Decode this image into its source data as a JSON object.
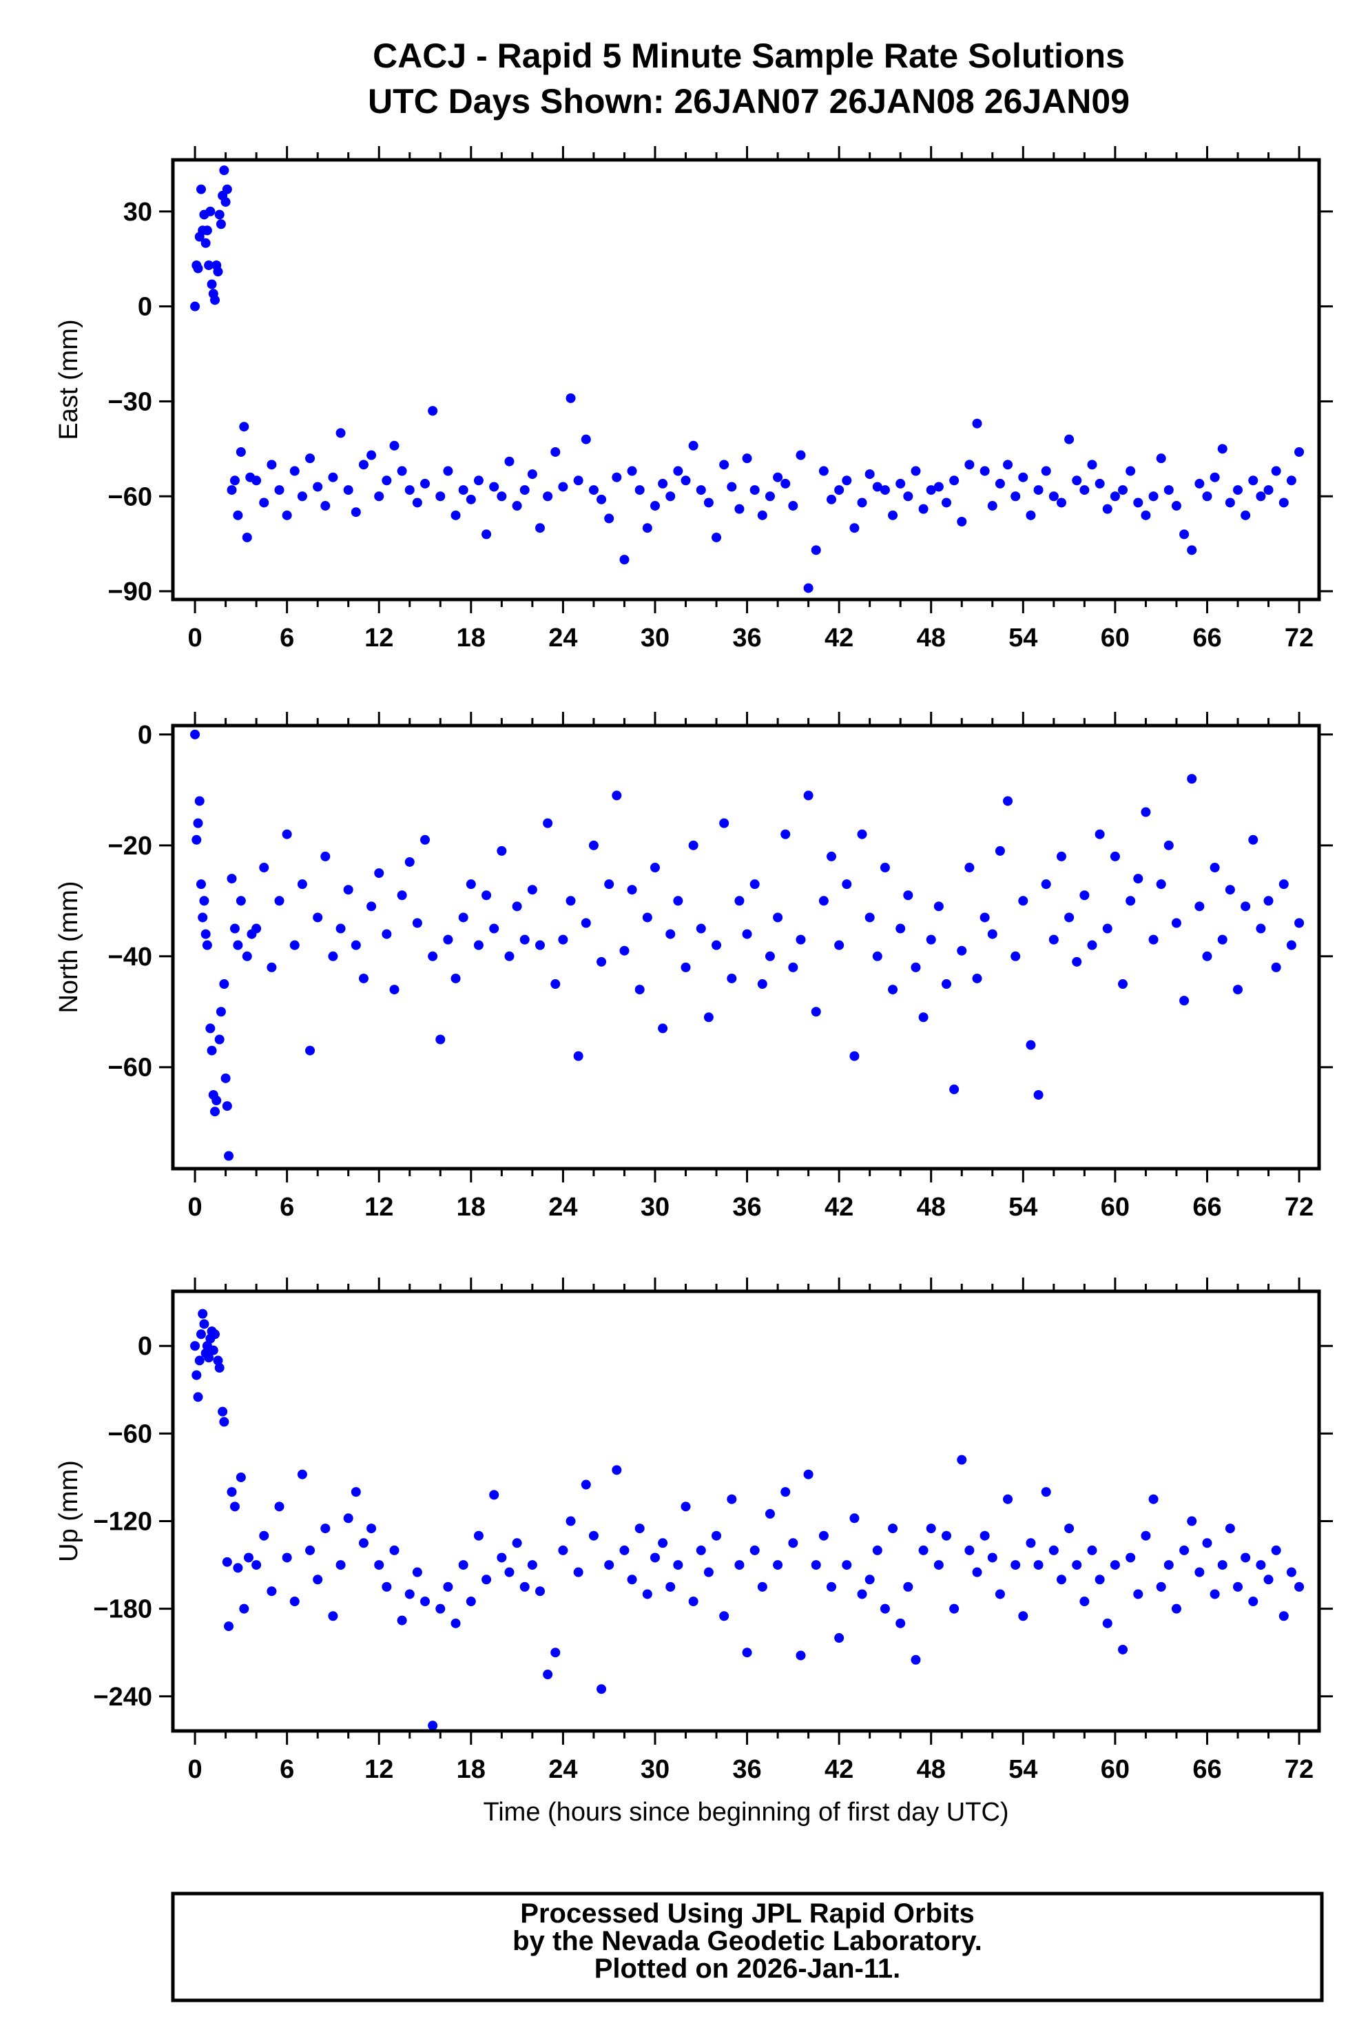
{
  "title": {
    "line1": "CACJ - Rapid 5 Minute Sample Rate Solutions",
    "line2": "UTC Days Shown:  26JAN07 26JAN08 26JAN09"
  },
  "footer": {
    "line1": "Processed Using JPL Rapid Orbits",
    "line2": "by the Nevada Geodetic Laboratory.",
    "line3": "Plotted on 2026-Jan-11."
  },
  "colors": {
    "points": "#0000ff",
    "frame": "#000000"
  },
  "chart_data": [
    {
      "type": "scatter",
      "name": "east",
      "ylabel": "East (mm)",
      "xlabel": "",
      "xlim": [
        -1.44,
        73.3
      ],
      "ylim": [
        -92.6,
        46.3
      ],
      "xticks": [
        0,
        6,
        12,
        18,
        24,
        30,
        36,
        42,
        48,
        54,
        60,
        66,
        72
      ],
      "yticks": [
        30,
        0,
        -30,
        -60,
        -90
      ],
      "early_points": [
        [
          0,
          0
        ],
        [
          0.1,
          13
        ],
        [
          0.2,
          12
        ],
        [
          0.3,
          22
        ],
        [
          0.4,
          37
        ],
        [
          0.5,
          24
        ],
        [
          0.6,
          29
        ],
        [
          0.7,
          20
        ],
        [
          0.8,
          24
        ],
        [
          0.9,
          13
        ],
        [
          1.0,
          30
        ],
        [
          1.1,
          7
        ],
        [
          1.2,
          4
        ],
        [
          1.3,
          2
        ],
        [
          1.4,
          13
        ],
        [
          1.5,
          11
        ],
        [
          1.6,
          29
        ],
        [
          1.7,
          26
        ],
        [
          1.8,
          35
        ],
        [
          1.9,
          43
        ],
        [
          2.0,
          33
        ],
        [
          2.1,
          37
        ],
        [
          2.4,
          -58
        ],
        [
          2.6,
          -55
        ],
        [
          2.8,
          -66
        ],
        [
          3.0,
          -46
        ],
        [
          3.2,
          -38
        ],
        [
          3.4,
          -73
        ],
        [
          3.6,
          -54
        ]
      ],
      "x_range": [
        4,
        72
      ],
      "values": [
        -55,
        -62,
        -50,
        -58,
        -66,
        -52,
        -60,
        -48,
        -57,
        -63,
        -54,
        -40,
        -58,
        -65,
        -50,
        -47,
        -60,
        -55,
        -44,
        -52,
        -58,
        -62,
        -56,
        -33,
        -60,
        -52,
        -66,
        -58,
        -61,
        -55,
        -72,
        -57,
        -60,
        -49,
        -63,
        -58,
        -53,
        -70,
        -60,
        -46,
        -57,
        -29,
        -55,
        -42,
        -58,
        -61,
        -67,
        -54,
        -80,
        -52,
        -58,
        -70,
        -63,
        -56,
        -60,
        -52,
        -55,
        -44,
        -58,
        -62,
        -73,
        -50,
        -57,
        -64,
        -48,
        -58,
        -66,
        -60,
        -54,
        -56,
        -63,
        -47,
        -89,
        -77,
        -52,
        -61,
        -58,
        -55,
        -70,
        -62,
        -53,
        -57,
        -58,
        -66,
        -56,
        -60,
        -52,
        -64,
        -58,
        -57,
        -62,
        -55,
        -68,
        -50,
        -37,
        -52,
        -63,
        -56,
        -50,
        -60,
        -54,
        -66,
        -58,
        -52,
        -60,
        -62,
        -42,
        -55,
        -58,
        -50,
        -56,
        -64,
        -60,
        -58,
        -52,
        -62,
        -66,
        -60,
        -48,
        -58,
        -63,
        -72,
        -77,
        -56,
        -60,
        -54,
        -45,
        -62,
        -58,
        -66,
        -55,
        -60,
        -58,
        -52,
        -62,
        -55,
        -46
      ]
    },
    {
      "type": "scatter",
      "name": "north",
      "ylabel": "North (mm)",
      "xlabel": "",
      "xlim": [
        -1.44,
        73.3
      ],
      "ylim": [
        -78.3,
        1.6
      ],
      "xticks": [
        0,
        6,
        12,
        18,
        24,
        30,
        36,
        42,
        48,
        54,
        60,
        66,
        72
      ],
      "yticks": [
        0,
        -20,
        -40,
        -60
      ],
      "early_points": [
        [
          0,
          0
        ],
        [
          0.1,
          -19
        ],
        [
          0.2,
          -16
        ],
        [
          0.3,
          -12
        ],
        [
          0.4,
          -27
        ],
        [
          0.5,
          -33
        ],
        [
          0.6,
          -30
        ],
        [
          0.7,
          -36
        ],
        [
          0.8,
          -38
        ],
        [
          1.0,
          -53
        ],
        [
          1.1,
          -57
        ],
        [
          1.2,
          -65
        ],
        [
          1.3,
          -68
        ],
        [
          1.4,
          -66
        ],
        [
          1.6,
          -55
        ],
        [
          1.7,
          -50
        ],
        [
          1.9,
          -45
        ],
        [
          2.0,
          -62
        ],
        [
          2.1,
          -67
        ],
        [
          2.2,
          -76
        ],
        [
          2.4,
          -26
        ],
        [
          2.6,
          -35
        ],
        [
          2.8,
          -38
        ],
        [
          3.0,
          -30
        ],
        [
          3.4,
          -40
        ],
        [
          3.7,
          -36
        ]
      ],
      "x_range": [
        4,
        72
      ],
      "values": [
        -35,
        -24,
        -42,
        -30,
        -18,
        -38,
        -27,
        -57,
        -33,
        -22,
        -40,
        -35,
        -28,
        -38,
        -44,
        -31,
        -25,
        -36,
        -46,
        -29,
        -23,
        -34,
        -19,
        -40,
        -55,
        -37,
        -44,
        -33,
        -27,
        -38,
        -29,
        -35,
        -21,
        -40,
        -31,
        -37,
        -28,
        -38,
        -16,
        -45,
        -37,
        -30,
        -58,
        -34,
        -20,
        -41,
        -27,
        -11,
        -39,
        -28,
        -46,
        -33,
        -24,
        -53,
        -36,
        -30,
        -42,
        -20,
        -35,
        -51,
        -38,
        -16,
        -44,
        -30,
        -36,
        -27,
        -45,
        -40,
        -33,
        -18,
        -42,
        -37,
        -11,
        -50,
        -30,
        -22,
        -38,
        -27,
        -58,
        -18,
        -33,
        -40,
        -24,
        -46,
        -35,
        -29,
        -42,
        -51,
        -37,
        -31,
        -45,
        -64,
        -39,
        -24,
        -44,
        -33,
        -36,
        -21,
        -12,
        -40,
        -30,
        -56,
        -65,
        -27,
        -37,
        -22,
        -33,
        -41,
        -29,
        -38,
        -18,
        -35,
        -22,
        -45,
        -30,
        -26,
        -14,
        -37,
        -27,
        -20,
        -34,
        -48,
        -8,
        -31,
        -40,
        -24,
        -37,
        -28,
        -46,
        -31,
        -19,
        -35,
        -30,
        -42,
        -27,
        -38,
        -34
      ]
    },
    {
      "type": "scatter",
      "name": "up",
      "ylabel": "Up (mm)",
      "xlabel": "Time (hours since beginning of first day UTC)",
      "xlim": [
        -1.44,
        73.3
      ],
      "ylim": [
        -263.7,
        37.4
      ],
      "xticks": [
        0,
        6,
        12,
        18,
        24,
        30,
        36,
        42,
        48,
        54,
        60,
        66,
        72
      ],
      "yticks": [
        0,
        -60,
        -120,
        -180,
        -240
      ],
      "early_points": [
        [
          0,
          0
        ],
        [
          0.1,
          -20
        ],
        [
          0.2,
          -35
        ],
        [
          0.3,
          -10
        ],
        [
          0.4,
          8
        ],
        [
          0.5,
          22
        ],
        [
          0.6,
          15
        ],
        [
          0.7,
          -5
        ],
        [
          0.8,
          0
        ],
        [
          0.9,
          -8
        ],
        [
          1.0,
          5
        ],
        [
          1.1,
          10
        ],
        [
          1.2,
          -3
        ],
        [
          1.3,
          8
        ],
        [
          1.5,
          -10
        ],
        [
          1.6,
          -15
        ],
        [
          1.8,
          -45
        ],
        [
          1.9,
          -52
        ],
        [
          2.1,
          -148
        ],
        [
          2.2,
          -192
        ],
        [
          2.4,
          -100
        ],
        [
          2.6,
          -110
        ],
        [
          2.8,
          -152
        ],
        [
          3.0,
          -90
        ],
        [
          3.2,
          -180
        ],
        [
          3.5,
          -145
        ]
      ],
      "x_range": [
        4,
        72
      ],
      "values": [
        -150,
        -130,
        -168,
        -110,
        -145,
        -175,
        -88,
        -140,
        -160,
        -125,
        -185,
        -150,
        -118,
        -100,
        -135,
        -125,
        -150,
        -165,
        -140,
        -188,
        -170,
        -155,
        -175,
        -260,
        -180,
        -165,
        -190,
        -150,
        -175,
        -130,
        -160,
        -102,
        -145,
        -155,
        -135,
        -165,
        -150,
        -168,
        -225,
        -210,
        -140,
        -120,
        -155,
        -95,
        -130,
        -235,
        -150,
        -85,
        -140,
        -160,
        -125,
        -170,
        -145,
        -135,
        -165,
        -150,
        -110,
        -175,
        -140,
        -155,
        -130,
        -185,
        -105,
        -150,
        -210,
        -140,
        -165,
        -115,
        -150,
        -100,
        -135,
        -212,
        -88,
        -150,
        -130,
        -165,
        -200,
        -150,
        -118,
        -170,
        -160,
        -140,
        -180,
        -125,
        -190,
        -165,
        -215,
        -140,
        -125,
        -150,
        -130,
        -180,
        -78,
        -140,
        -155,
        -130,
        -145,
        -170,
        -105,
        -150,
        -185,
        -135,
        -150,
        -100,
        -140,
        -160,
        -125,
        -150,
        -175,
        -140,
        -160,
        -190,
        -150,
        -208,
        -145,
        -170,
        -130,
        -105,
        -165,
        -150,
        -180,
        -140,
        -120,
        -155,
        -135,
        -170,
        -150,
        -125,
        -165,
        -145,
        -175,
        -150,
        -160,
        -140,
        -185,
        -155,
        -165
      ]
    }
  ]
}
